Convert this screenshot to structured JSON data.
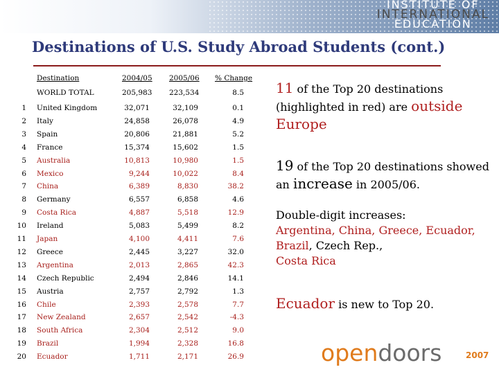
{
  "logo": {
    "line1": "INSTITUTE OF",
    "line2": "INTERNATIONAL",
    "line3": "EDUCATION"
  },
  "title": "Destinations of U.S. Study Abroad Students (cont.)",
  "table": {
    "headers": {
      "destination": "Destination",
      "y1": "2004/05",
      "y2": "2005/06",
      "change": "% Change"
    },
    "total": {
      "label": "WORLD TOTAL",
      "y1": "205,983",
      "y2": "223,534",
      "change": "8.5"
    },
    "rows": [
      {
        "rank": "1",
        "dest": "United Kingdom",
        "y1": "32,071",
        "y2": "32,109",
        "change": "0.1",
        "highlight": false
      },
      {
        "rank": "2",
        "dest": "Italy",
        "y1": "24,858",
        "y2": "26,078",
        "change": "4.9",
        "highlight": false
      },
      {
        "rank": "3",
        "dest": "Spain",
        "y1": "20,806",
        "y2": "21,881",
        "change": "5.2",
        "highlight": false
      },
      {
        "rank": "4",
        "dest": "France",
        "y1": "15,374",
        "y2": "15,602",
        "change": "1.5",
        "highlight": false
      },
      {
        "rank": "5",
        "dest": "Australia",
        "y1": "10,813",
        "y2": "10,980",
        "change": "1.5",
        "highlight": true
      },
      {
        "rank": "6",
        "dest": "Mexico",
        "y1": "9,244",
        "y2": "10,022",
        "change": "8.4",
        "highlight": true
      },
      {
        "rank": "7",
        "dest": "China",
        "y1": "6,389",
        "y2": "8,830",
        "change": "38.2",
        "highlight": true
      },
      {
        "rank": "8",
        "dest": "Germany",
        "y1": "6,557",
        "y2": "6,858",
        "change": "4.6",
        "highlight": false
      },
      {
        "rank": "9",
        "dest": "Costa Rica",
        "y1": "4,887",
        "y2": "5,518",
        "change": "12.9",
        "highlight": true
      },
      {
        "rank": "10",
        "dest": "Ireland",
        "y1": "5,083",
        "y2": "5,499",
        "change": "8.2",
        "highlight": false
      },
      {
        "rank": "11",
        "dest": "Japan",
        "y1": "4,100",
        "y2": "4,411",
        "change": "7.6",
        "highlight": true
      },
      {
        "rank": "12",
        "dest": "Greece",
        "y1": "2,445",
        "y2": "3,227",
        "change": "32.0",
        "highlight": false
      },
      {
        "rank": "13",
        "dest": "Argentina",
        "y1": "2,013",
        "y2": "2,865",
        "change": "42.3",
        "highlight": true
      },
      {
        "rank": "14",
        "dest": "Czech Republic",
        "y1": "2,494",
        "y2": "2,846",
        "change": "14.1",
        "highlight": false
      },
      {
        "rank": "15",
        "dest": "Austria",
        "y1": "2,757",
        "y2": "2,792",
        "change": "1.3",
        "highlight": false
      },
      {
        "rank": "16",
        "dest": "Chile",
        "y1": "2,393",
        "y2": "2,578",
        "change": "7.7",
        "highlight": true
      },
      {
        "rank": "17",
        "dest": "New Zealand",
        "y1": "2,657",
        "y2": "2,542",
        "change": "-4.3",
        "highlight": true
      },
      {
        "rank": "18",
        "dest": "South Africa",
        "y1": "2,304",
        "y2": "2,512",
        "change": "9.0",
        "highlight": true
      },
      {
        "rank": "19",
        "dest": "Brazil",
        "y1": "1,994",
        "y2": "2,328",
        "change": "16.8",
        "highlight": true
      },
      {
        "rank": "20",
        "dest": "Ecuador",
        "y1": "1,711",
        "y2": "2,171",
        "change": "26.9",
        "highlight": true
      }
    ]
  },
  "notes": {
    "n1": {
      "a": "11",
      "b": " of the Top 20 destinations (highlighted in red) are ",
      "c": "outside",
      "d": "Europe"
    },
    "n2": {
      "a": "19",
      "b": " of the Top 20 destinations showed an ",
      "c": "increase",
      "d": " in 2005/06."
    },
    "n3": {
      "a": "Double-digit increases:",
      "b": "Argentina, China, Greece, Ecuador, Brazil",
      "c": ", Czech Rep., ",
      "d": "Costa Rica"
    },
    "n4": {
      "a": "Ecuador",
      "b": " is new to Top 20."
    }
  },
  "footer": {
    "open": "open",
    "doors": "doors",
    "year": "2007"
  },
  "colors": {
    "title": "#2e3a7a",
    "highlight": "#a8201c",
    "rule": "#8b1a1a",
    "brand_orange": "#e07b1c"
  }
}
